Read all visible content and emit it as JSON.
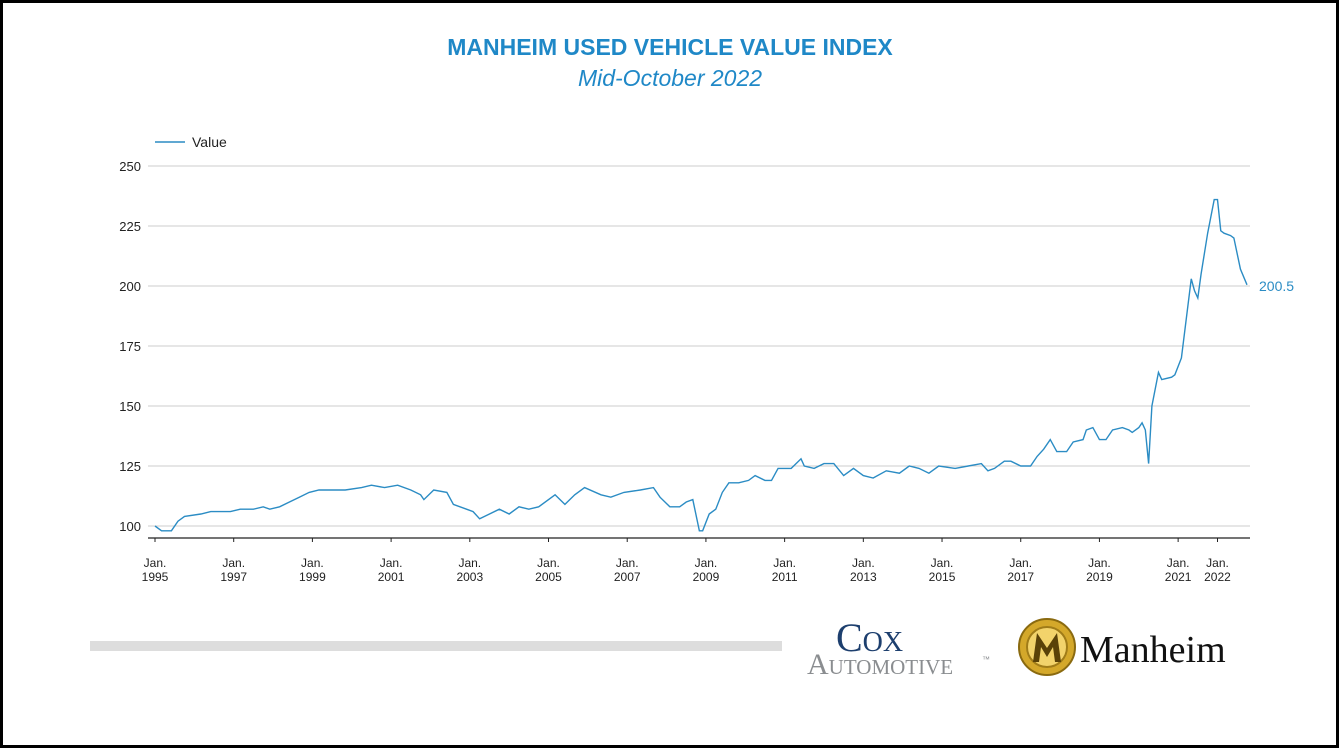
{
  "chart_data": {
    "type": "line",
    "title": "MANHEIM USED VEHICLE VALUE INDEX",
    "subtitle": "Mid-October 2022",
    "legend": "top-left",
    "grid": true,
    "x": [
      "1995-01",
      "1995-03",
      "1995-06",
      "1995-08",
      "1995-10",
      "1996-03",
      "1996-06",
      "1996-12",
      "1997-03",
      "1997-07",
      "1997-10",
      "1997-12",
      "1998-03",
      "1998-06",
      "1998-09",
      "1998-12",
      "1999-03",
      "1999-06",
      "1999-11",
      "2000-04",
      "2000-07",
      "2000-11",
      "2001-03",
      "2001-07",
      "2001-10",
      "2001-11",
      "2002-02",
      "2002-06",
      "2002-08",
      "2002-12",
      "2003-02",
      "2003-04",
      "2003-07",
      "2003-10",
      "2004-01",
      "2004-04",
      "2004-07",
      "2004-10",
      "2005-03",
      "2005-06",
      "2005-09",
      "2005-12",
      "2006-05",
      "2006-08",
      "2006-12",
      "2007-05",
      "2007-09",
      "2007-11",
      "2008-02",
      "2008-05",
      "2008-07",
      "2008-09",
      "2008-11",
      "2008-12",
      "2009-02",
      "2009-04",
      "2009-06",
      "2009-08",
      "2009-11",
      "2010-02",
      "2010-04",
      "2010-07",
      "2010-09",
      "2010-11",
      "2011-03",
      "2011-06",
      "2011-07",
      "2011-10",
      "2012-01",
      "2012-04",
      "2012-07",
      "2012-10",
      "2013-01",
      "2013-04",
      "2013-08",
      "2013-12",
      "2014-03",
      "2014-06",
      "2014-09",
      "2014-12",
      "2015-05",
      "2015-09",
      "2016-01",
      "2016-03",
      "2016-05",
      "2016-08",
      "2016-10",
      "2017-01",
      "2017-04",
      "2017-06",
      "2017-08",
      "2017-10",
      "2017-12",
      "2018-03",
      "2018-05",
      "2018-08",
      "2018-09",
      "2018-11",
      "2019-01",
      "2019-03",
      "2019-05",
      "2019-08",
      "2019-10",
      "2019-11",
      "2020-01",
      "2020-02",
      "2020-03",
      "2020-04",
      "2020-05",
      "2020-07",
      "2020-08",
      "2020-11",
      "2020-12",
      "2021-02",
      "2021-05",
      "2021-06",
      "2021-07",
      "2021-08",
      "2021-10",
      "2021-12",
      "2022-01",
      "2022-02",
      "2022-03",
      "2022-05",
      "2022-06",
      "2022-08",
      "2022-10"
    ],
    "series": [
      {
        "name": "Value",
        "color": "#2b8cc4",
        "values": [
          100,
          98,
          98,
          102,
          104,
          105,
          106,
          106,
          107,
          107,
          108,
          107,
          108,
          110,
          112,
          114,
          115,
          115,
          115,
          116,
          117,
          116,
          117,
          115,
          113,
          111,
          115,
          114,
          109,
          107,
          106,
          103,
          105,
          107,
          105,
          108,
          107,
          108,
          113,
          109,
          113,
          116,
          113,
          112,
          114,
          115,
          116,
          112,
          108,
          108,
          110,
          111,
          98,
          98,
          105,
          107,
          114,
          118,
          118,
          119,
          121,
          119,
          119,
          124,
          124,
          128,
          125,
          124,
          126,
          126,
          121,
          124,
          121,
          120,
          123,
          122,
          125,
          124,
          122,
          125,
          124,
          125,
          126,
          123,
          124,
          127,
          127,
          125,
          125,
          129,
          132,
          136,
          131,
          131,
          135,
          136,
          140,
          141,
          136,
          136,
          140,
          141,
          140,
          139,
          141,
          143,
          140,
          126,
          150,
          164,
          161,
          162,
          163,
          170,
          203,
          198,
          195,
          205,
          222,
          236,
          236,
          223,
          222,
          221,
          220,
          207,
          200.5
        ]
      }
    ],
    "xlim": [
      "1995-01",
      "2022-10"
    ],
    "xticks": [
      {
        "value": "1995-01",
        "label": "Jan. 1995"
      },
      {
        "value": "1997-01",
        "label": "Jan. 1997"
      },
      {
        "value": "1999-01",
        "label": "Jan. 1999"
      },
      {
        "value": "2001-01",
        "label": "Jan. 2001"
      },
      {
        "value": "2003-01",
        "label": "Jan. 2003"
      },
      {
        "value": "2005-01",
        "label": "Jan. 2005"
      },
      {
        "value": "2007-01",
        "label": "Jan. 2007"
      },
      {
        "value": "2009-01",
        "label": "Jan. 2009"
      },
      {
        "value": "2011-01",
        "label": "Jan. 2011"
      },
      {
        "value": "2013-01",
        "label": "Jan. 2013"
      },
      {
        "value": "2015-01",
        "label": "Jan. 2015"
      },
      {
        "value": "2017-01",
        "label": "Jan. 2017"
      },
      {
        "value": "2019-01",
        "label": "Jan. 2019"
      },
      {
        "value": "2021-01",
        "label": "Jan. 2021"
      },
      {
        "value": "2022-01",
        "label": "Jan. 2022"
      }
    ],
    "ylim": [
      95,
      250
    ],
    "yticks": [
      100,
      125,
      150,
      175,
      200,
      225,
      250
    ]
  },
  "footer": {
    "cox": "Cox",
    "automotive": "Automotive",
    "tm": "™",
    "manheim": "Manheim"
  }
}
